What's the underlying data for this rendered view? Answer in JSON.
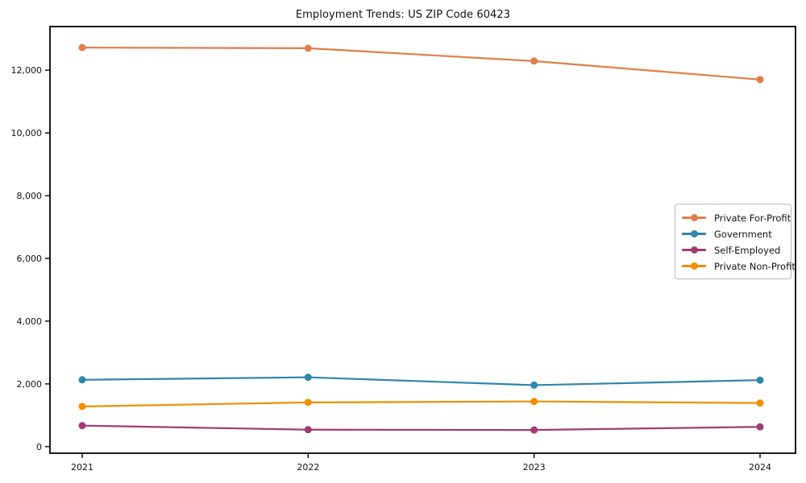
{
  "chart": {
    "title": "Employment Trends: US ZIP Code 60423"
  },
  "chart_data": {
    "type": "line",
    "title": "Employment Trends: US ZIP Code 60423",
    "xlabel": "",
    "ylabel": "",
    "x_labels": [
      "2021",
      "2022",
      "2023",
      "2024"
    ],
    "series": [
      {
        "name": "Private For-Profit",
        "color": "#E27D49",
        "values": [
          12720,
          12700,
          12290,
          11700
        ]
      },
      {
        "name": "Government",
        "color": "#2E86AB",
        "values": [
          2130,
          2210,
          1960,
          2120
        ]
      },
      {
        "name": "Self-Employed",
        "color": "#A23B72",
        "values": [
          670,
          540,
          530,
          630
        ]
      },
      {
        "name": "Private Non-Profit",
        "color": "#F18F01",
        "values": [
          1280,
          1410,
          1440,
          1390
        ]
      }
    ],
    "yticks": [
      0,
      2000,
      4000,
      6000,
      8000,
      10000,
      12000
    ],
    "ytick_labels": [
      "0",
      "2,000",
      "4,000",
      "6,000",
      "8,000",
      "10,000",
      "12,000"
    ],
    "ylim": [
      -210,
      13390
    ],
    "grid": false,
    "legend_position": "center right",
    "marker": "circle",
    "line_width": 2.2,
    "marker_radius": 4.5,
    "axis_color": "#000000",
    "background": "#ffffff"
  }
}
